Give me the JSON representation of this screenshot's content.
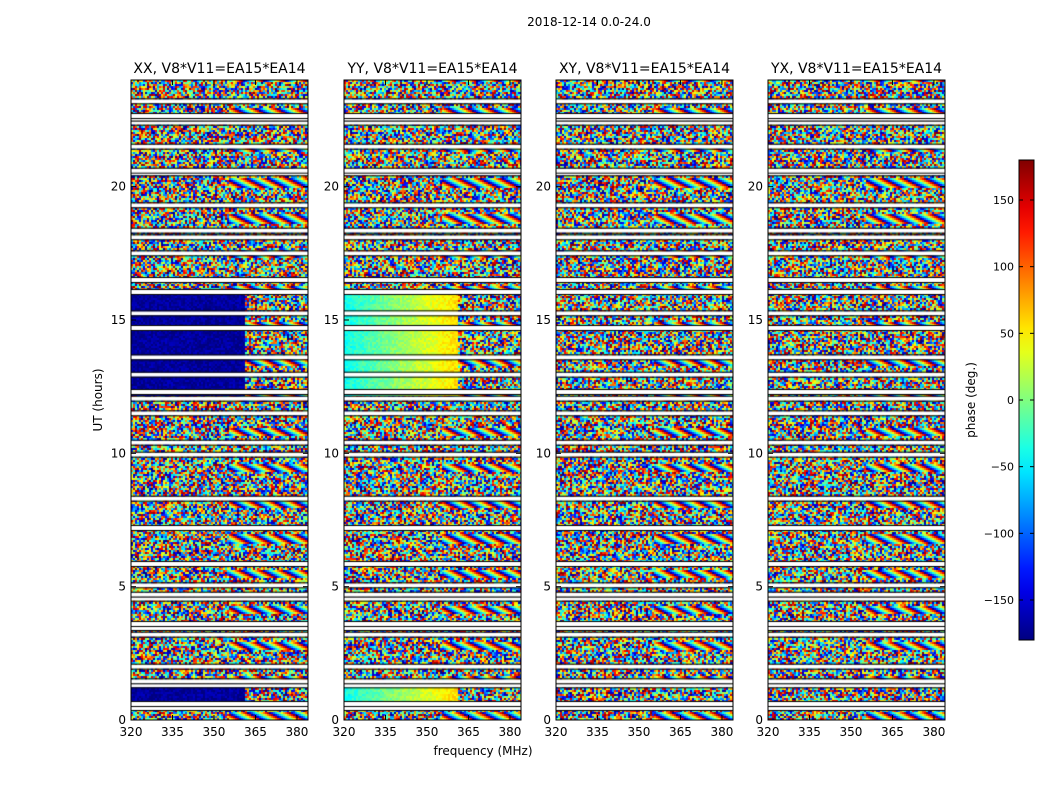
{
  "chart_data": {
    "type": "heatmap",
    "suptitle": "2018-12-14 0.0-24.0",
    "xlabel": "frequency (MHz)",
    "ylabel": "UT (hours)",
    "xlim": [
      320,
      384
    ],
    "ylim": [
      0,
      24
    ],
    "xticks": [
      "320",
      "335",
      "350",
      "365",
      "380"
    ],
    "yticks": [
      "0",
      "5",
      "10",
      "15",
      "20"
    ],
    "panels": [
      {
        "title": "XX, V8*V11=EA15*EA14",
        "dominant_phase_block": -170
      },
      {
        "title": "YY, V8*V11=EA15*EA14",
        "dominant_phase_block": -20
      },
      {
        "title": "XY, V8*V11=EA15*EA14",
        "dominant_phase_block": null
      },
      {
        "title": "YX, V8*V11=EA15*EA14",
        "dominant_phase_block": null
      }
    ],
    "colorbar": {
      "label": "phase (deg.)",
      "range": [
        -180,
        180
      ],
      "ticks": [
        "150",
        "100",
        "50",
        "0",
        "−50",
        "−100",
        "−150"
      ],
      "tick_values": [
        150,
        100,
        50,
        0,
        -50,
        -100,
        -150
      ],
      "colormap": "jet"
    },
    "flagged_ut_rows": [
      0.45,
      0.6,
      1.3,
      1.45,
      2.0,
      3.2,
      3.45,
      3.6,
      4.55,
      4.7,
      5.05,
      5.85,
      7.2,
      8.3,
      9.95,
      10.4,
      11.5,
      12.05,
      12.3,
      12.95,
      13.6,
      14.7,
      15.25,
      16.05,
      16.5,
      17.5,
      18.1,
      18.35,
      19.3,
      20.5,
      20.6,
      21.5,
      22.4,
      22.55,
      22.65,
      23.2
    ]
  }
}
